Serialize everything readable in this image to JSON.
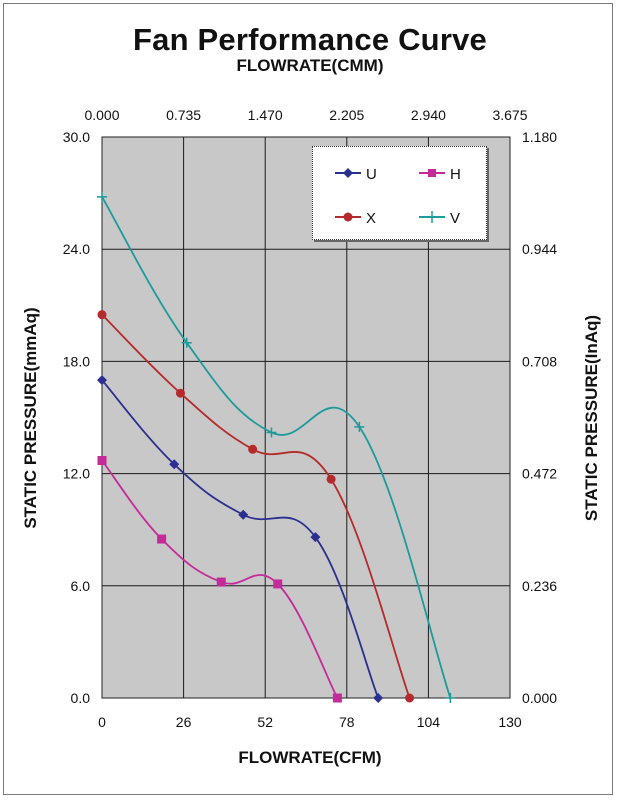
{
  "chart_data": {
    "type": "line",
    "title": "Fan Performance Curve",
    "top_axis_label": "FLOWRATE(CMM)",
    "xlabel": "FLOWRATE(CFM)",
    "ylabel_left": "STATIC PRESSURE(mmAq)",
    "ylabel_right": "STATIC PRESSURE(InAq)",
    "xlim": [
      0,
      130
    ],
    "ylim": [
      0,
      30
    ],
    "x_ticks": [
      "0",
      "26",
      "52",
      "78",
      "104",
      "130"
    ],
    "x_top_ticks": [
      "0.000",
      "0.735",
      "1.470",
      "2.205",
      "2.940",
      "3.675"
    ],
    "y_left_ticks": [
      "0.0",
      "6.0",
      "12.0",
      "18.0",
      "24.0",
      "30.0"
    ],
    "y_right_ticks": [
      "0.000",
      "0.236",
      "0.472",
      "0.708",
      "0.944",
      "1.180"
    ],
    "grid": true,
    "legend_position": "top-right",
    "background_color": "#c8c8c8",
    "series": [
      {
        "name": "U",
        "color": "#2b2f8f",
        "marker": "diamond",
        "x": [
          0,
          23,
          45,
          68,
          88
        ],
        "y": [
          17.0,
          12.5,
          9.8,
          8.6,
          0.0
        ]
      },
      {
        "name": "H",
        "color": "#c42a9a",
        "marker": "square",
        "x": [
          0,
          19,
          38,
          56,
          75
        ],
        "y": [
          12.7,
          8.5,
          6.2,
          6.1,
          0.0
        ]
      },
      {
        "name": "X",
        "color": "#b52a2a",
        "marker": "circle",
        "x": [
          0,
          25,
          48,
          73,
          98
        ],
        "y": [
          20.5,
          16.3,
          13.3,
          11.7,
          0.0
        ]
      },
      {
        "name": "V",
        "color": "#1d9a9a",
        "marker": "plus",
        "x": [
          0,
          27,
          54,
          82,
          111
        ],
        "y": [
          26.8,
          19.0,
          14.2,
          14.5,
          0.0
        ]
      }
    ]
  }
}
